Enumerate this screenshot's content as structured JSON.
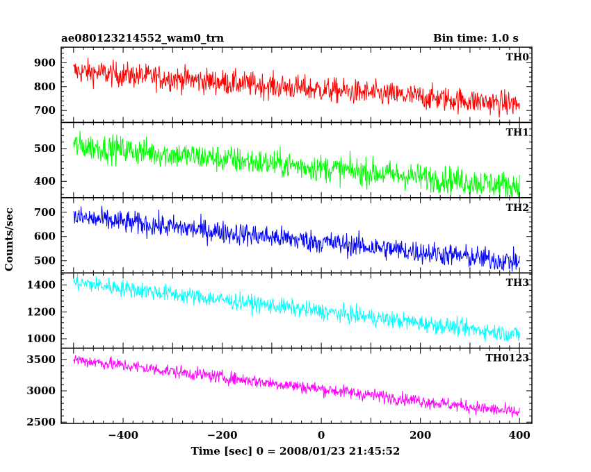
{
  "chart_data": {
    "type": "line",
    "title": "ae080123214552_wam0_trn",
    "subtitle": "Bin time: 1.0 s",
    "xlabel": "Time [sec] 0 = 2008/01/23 21:45:52",
    "ylabel": "Counts/sec",
    "xlim": [
      -525,
      425
    ],
    "x_ticks": [
      -400,
      -200,
      0,
      200,
      400
    ],
    "x_range": [
      -500,
      400
    ],
    "bin_time_s": 1.0,
    "panels": [
      {
        "name": "TH0",
        "color": "#ff0000",
        "ylim": [
          650,
          965
        ],
        "y_ticks": [
          700,
          800,
          900
        ],
        "trend": {
          "x": [
            -500,
            400
          ],
          "y": [
            865,
            725
          ]
        },
        "noise_amplitude": 50
      },
      {
        "name": "TH1",
        "color": "#00ff00",
        "ylim": [
          350,
          580
        ],
        "y_ticks": [
          400,
          500
        ],
        "trend": {
          "x": [
            -500,
            400
          ],
          "y": [
            510,
            385
          ]
        },
        "noise_amplitude": 40
      },
      {
        "name": "TH2",
        "color": "#0000ff",
        "ylim": [
          450,
          760
        ],
        "y_ticks": [
          500,
          600,
          700
        ],
        "trend": {
          "x": [
            -500,
            400
          ],
          "y": [
            680,
            495
          ]
        },
        "noise_amplitude": 45
      },
      {
        "name": "TH3",
        "color": "#00ffff",
        "ylim": [
          930,
          1490
        ],
        "y_ticks": [
          1000,
          1200,
          1400
        ],
        "trend": {
          "x": [
            -500,
            400
          ],
          "y": [
            1420,
            1030
          ]
        },
        "noise_amplitude": 60
      },
      {
        "name": "TH0123",
        "color": "#ff00ff",
        "ylim": [
          2480,
          3680
        ],
        "y_ticks": [
          2500,
          3000,
          3500
        ],
        "trend": {
          "x": [
            -500,
            400
          ],
          "y": [
            3500,
            2650
          ]
        },
        "noise_amplitude": 100
      }
    ]
  }
}
